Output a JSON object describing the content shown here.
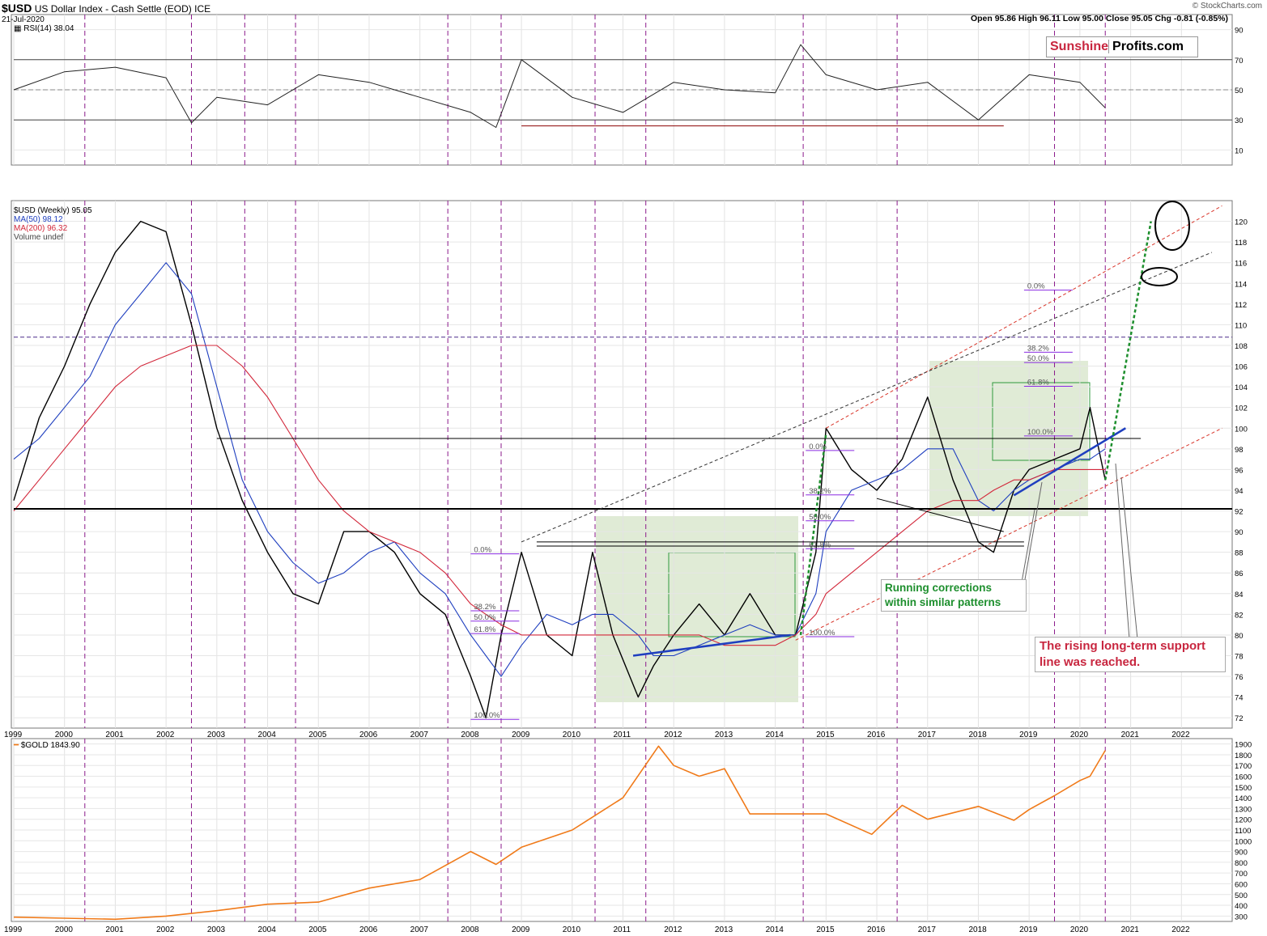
{
  "header": {
    "symbol": "$USD",
    "name": "US Dollar Index - Cash Settle (EOD)",
    "exchange": "ICE",
    "date": "21-Jul-2020",
    "ohlc": "Open 95.86   High 96.11   Low 95.00   Close 95.05   Chg -0.81 (-0.85%)",
    "credit": "© StockCharts.com"
  },
  "logo": {
    "part1": "Sunshine",
    "part2": "Profits.com"
  },
  "rsi_panel": {
    "label": "RSI(14) 38.04",
    "y_ticks": [
      "90",
      "70",
      "50",
      "30",
      "10"
    ]
  },
  "price_panel": {
    "legend": [
      "$USD (Weekly) 95.05",
      "MA(50) 98.12",
      "MA(200) 96.32",
      "Volume undef"
    ],
    "y_ticks": [
      "120",
      "118",
      "116",
      "114",
      "112",
      "110",
      "108",
      "106",
      "104",
      "102",
      "100",
      "98",
      "96",
      "94",
      "92",
      "90",
      "88",
      "86",
      "84",
      "82",
      "80",
      "78",
      "76",
      "74",
      "72"
    ],
    "fib_labels": [
      "0.0%",
      "38.2%",
      "50.0%",
      "61.8%",
      "100.0%"
    ],
    "annotation_green": [
      "Running corrections",
      "within similar patterns"
    ],
    "annotation_red": [
      "The rising long-term support",
      "line was reached."
    ]
  },
  "gold_panel": {
    "label": "$GOLD 1843.90",
    "y_ticks": [
      "1900",
      "1800",
      "1700",
      "1600",
      "1500",
      "1400",
      "1300",
      "1200",
      "1100",
      "1000",
      "900",
      "800",
      "700",
      "600",
      "500",
      "400",
      "300"
    ]
  },
  "x_axis": [
    "1999",
    "2000",
    "2001",
    "2002",
    "2003",
    "2004",
    "2005",
    "2006",
    "2007",
    "2008",
    "2009",
    "2010",
    "2011",
    "2012",
    "2013",
    "2014",
    "2015",
    "2016",
    "2017",
    "2018",
    "2019",
    "2020",
    "2021",
    "2022"
  ],
  "colors": {
    "price": "#000000",
    "down_bar": "#cc0000",
    "ma50": "#1f3fbf",
    "ma200": "#d2273a",
    "gold": "#f07a19",
    "cycle_lines": "#8b1a8b",
    "fib": "#8a2be2",
    "green_box": "#dbe8cf",
    "support": "#d9352a",
    "annotation_red": "#c8263f",
    "annotation_green": "#1e8f2e"
  },
  "chart_data": [
    {
      "type": "line",
      "title": "RSI(14) 38.04",
      "ylim": [
        0,
        100
      ],
      "x": [
        1999.0,
        2000.0,
        2001.0,
        2002.0,
        2002.5,
        2003.0,
        2004.0,
        2005.0,
        2006.0,
        2007.0,
        2008.0,
        2008.5,
        2009.0,
        2010.0,
        2011.0,
        2012.0,
        2013.0,
        2014.0,
        2014.5,
        2015.0,
        2016.0,
        2017.0,
        2018.0,
        2019.0,
        2020.0,
        2020.5
      ],
      "series": [
        {
          "values": [
            50,
            62,
            65,
            58,
            28,
            45,
            40,
            60,
            55,
            45,
            35,
            25,
            70,
            45,
            35,
            55,
            50,
            48,
            80,
            60,
            50,
            55,
            30,
            60,
            55,
            38
          ]
        }
      ],
      "levels": [
        70,
        50,
        30
      ]
    },
    {
      "type": "line",
      "title": "$USD (Weekly) 95.05",
      "ylim": [
        71,
        122
      ],
      "x": [
        1999.0,
        1999.5,
        2000.0,
        2000.5,
        2001.0,
        2001.5,
        2002.0,
        2002.5,
        2003.0,
        2003.5,
        2004.0,
        2004.5,
        2005.0,
        2005.5,
        2006.0,
        2006.5,
        2007.0,
        2007.5,
        2008.0,
        2008.3,
        2008.6,
        2009.0,
        2009.5,
        2010.0,
        2010.4,
        2010.8,
        2011.3,
        2011.6,
        2012.0,
        2012.5,
        2013.0,
        2013.5,
        2014.0,
        2014.4,
        2014.8,
        2015.0,
        2015.5,
        2016.0,
        2016.5,
        2017.0,
        2017.5,
        2018.0,
        2018.3,
        2018.7,
        2019.0,
        2019.5,
        2020.0,
        2020.2,
        2020.5
      ],
      "series": [
        {
          "name": "$USD (Weekly) 95.05",
          "values": [
            93,
            101,
            106,
            112,
            117,
            120,
            119,
            110,
            100,
            93,
            88,
            84,
            83,
            90,
            90,
            88,
            84,
            82,
            76,
            72,
            80,
            88,
            80,
            78,
            88,
            80,
            74,
            77,
            80,
            83,
            80,
            84,
            80,
            80,
            88,
            100,
            96,
            94,
            97,
            103,
            95,
            89,
            88,
            94,
            96,
            97,
            98,
            102,
            95
          ]
        },
        {
          "name": "MA(50) 98.12",
          "values": [
            97,
            99,
            102,
            105,
            110,
            113,
            116,
            113,
            104,
            95,
            90,
            87,
            85,
            86,
            88,
            89,
            86,
            84,
            80,
            78,
            76,
            79,
            82,
            81,
            82,
            82,
            80,
            78,
            78,
            79,
            80,
            81,
            80,
            80,
            84,
            90,
            94,
            95,
            96,
            98,
            98,
            93,
            92,
            94,
            95,
            96,
            97,
            97,
            98
          ]
        },
        {
          "name": "MA(200) 96.32",
          "values": [
            92,
            95,
            98,
            101,
            104,
            106,
            107,
            108,
            108,
            106,
            103,
            99,
            95,
            92,
            90,
            89,
            88,
            86,
            83,
            82,
            81,
            80,
            80,
            80,
            80,
            80,
            80,
            80,
            80,
            80,
            79,
            79,
            79,
            80,
            82,
            84,
            86,
            88,
            90,
            92,
            93,
            93,
            94,
            95,
            95,
            96,
            96,
            96,
            96
          ]
        }
      ],
      "annotations": [
        "Running corrections within similar patterns",
        "The rising long-term support line was reached."
      ]
    },
    {
      "type": "line",
      "title": "$GOLD 1843.90",
      "ylim": [
        250,
        1950
      ],
      "x": [
        1999.0,
        2000.0,
        2001.0,
        2002.0,
        2003.0,
        2004.0,
        2005.0,
        2006.0,
        2007.0,
        2008.0,
        2008.5,
        2009.0,
        2010.0,
        2011.0,
        2011.7,
        2012.0,
        2012.5,
        2013.0,
        2013.5,
        2014.0,
        2015.0,
        2015.9,
        2016.5,
        2017.0,
        2018.0,
        2018.7,
        2019.0,
        2019.5,
        2020.0,
        2020.2,
        2020.5
      ],
      "series": [
        {
          "name": "$GOLD 1843.90",
          "values": [
            290,
            280,
            270,
            300,
            350,
            410,
            430,
            560,
            640,
            900,
            780,
            940,
            1100,
            1400,
            1880,
            1700,
            1600,
            1670,
            1250,
            1250,
            1250,
            1060,
            1330,
            1200,
            1320,
            1190,
            1290,
            1420,
            1560,
            1600,
            1840
          ]
        }
      ]
    }
  ]
}
